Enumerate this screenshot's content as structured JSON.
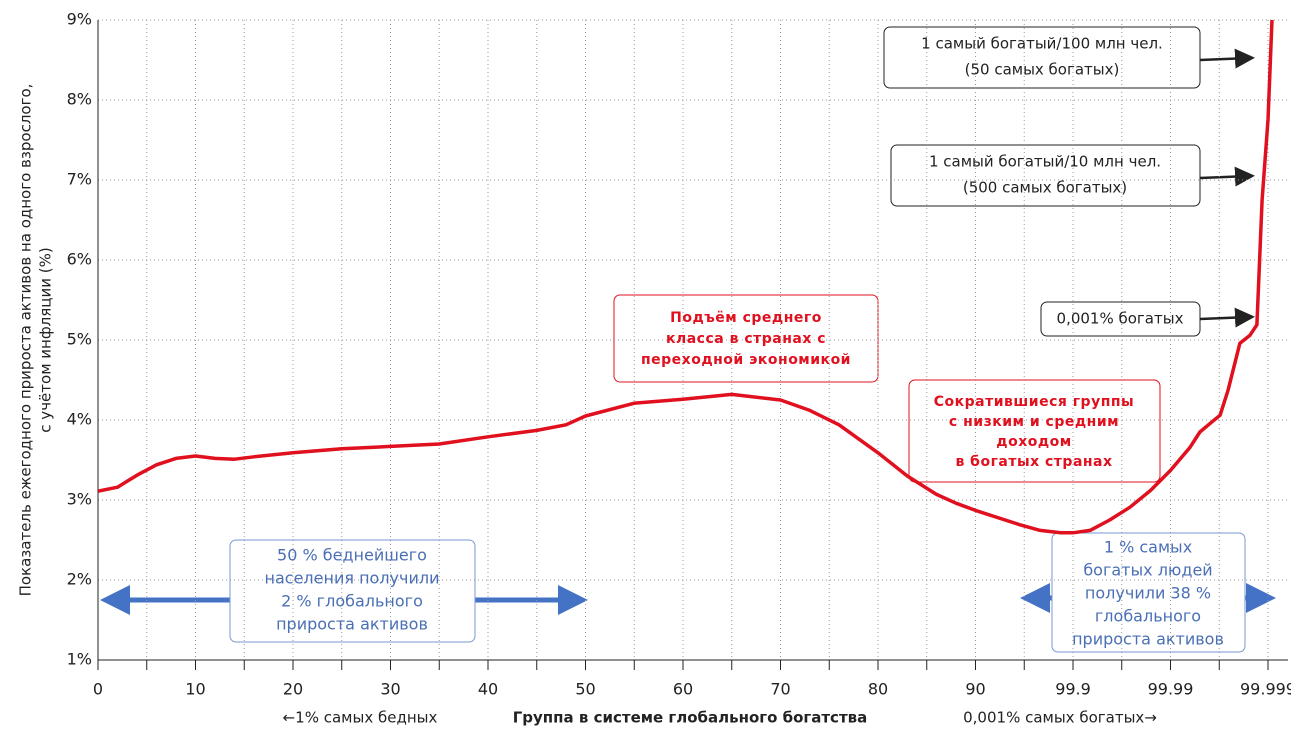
{
  "chart_data": {
    "type": "line",
    "ylabel": [
      "Показатель ежегодного прироста активов на одного взрослого,",
      "с учётом инфляции (%)"
    ],
    "xlabel": "Группа  в системе глобального богатства",
    "xlabel_left": "←1% самых бедных",
    "xlabel_right": "0,001% самых богатых→",
    "xticks": [
      0,
      10,
      20,
      30,
      40,
      50,
      60,
      70,
      80,
      90,
      99.9,
      99.99,
      99.999
    ],
    "ylim": [
      1,
      9
    ],
    "yticks": [
      {
        "value": 1,
        "label": "1%"
      },
      {
        "value": 2,
        "label": "2%"
      },
      {
        "value": 3,
        "label": "3%"
      },
      {
        "value": 4,
        "label": "4%"
      },
      {
        "value": 5,
        "label": "5%"
      },
      {
        "value": 6,
        "label": "6%"
      },
      {
        "value": 7,
        "label": "7%"
      },
      {
        "value": 8,
        "label": "8%"
      },
      {
        "value": 9,
        "label": "9%"
      }
    ],
    "grid": true,
    "series": [
      {
        "color": "#e0101f",
        "x": [
          0,
          2,
          4,
          6,
          8,
          10,
          12,
          14,
          16,
          20,
          25,
          30,
          35,
          40,
          45,
          48,
          50,
          55,
          60,
          65,
          70,
          73,
          76,
          80,
          83,
          86,
          88,
          90,
          98.78,
          99.53,
          99.82,
          99.9,
          99.933,
          99.958,
          99.974,
          99.984,
          99.99,
          99.9937,
          99.995,
          99.9961,
          99.9969,
          99.99743,
          99.99806,
          99.99847,
          99.9987,
          99.99885,
          99.999,
          99.99909
        ],
        "values": [
          3.11,
          3.16,
          3.31,
          3.44,
          3.52,
          3.55,
          3.52,
          3.51,
          3.54,
          3.59,
          3.64,
          3.67,
          3.7,
          3.79,
          3.87,
          3.94,
          4.05,
          4.21,
          4.26,
          4.32,
          4.25,
          4.12,
          3.94,
          3.59,
          3.3,
          3.07,
          2.96,
          2.87,
          2.69,
          2.62,
          2.59,
          2.59,
          2.62,
          2.75,
          2.91,
          3.12,
          3.37,
          3.66,
          3.85,
          3.96,
          4.06,
          4.37,
          4.96,
          5.06,
          5.19,
          6.75,
          7.75,
          9
        ]
      }
    ],
    "annotations": [
      {
        "lines": [
          "1 самый богатый/100 млн чел.",
          "(50 самых богатых)"
        ]
      },
      {
        "lines": [
          "1 самый богатый/10 млн чел.",
          "(500 самых богатых)"
        ]
      },
      {
        "lines": [
          "0,001% богатых"
        ]
      },
      {
        "lines": [
          "Подъём среднего",
          "класса в странах с",
          "переходной экономикой"
        ]
      },
      {
        "lines": [
          "Сократившиеся группы",
          "с низким и средним",
          "доходом",
          "в богатых странах"
        ]
      },
      {
        "lines": [
          "50 % беднейшего",
          "населения получили",
          "2 % глобального",
          "прироста активов"
        ]
      },
      {
        "lines": [
          "1 % самых",
          "богатых людей",
          "получили 38 %",
          "глобального",
          "прироста активов"
        ]
      }
    ]
  }
}
